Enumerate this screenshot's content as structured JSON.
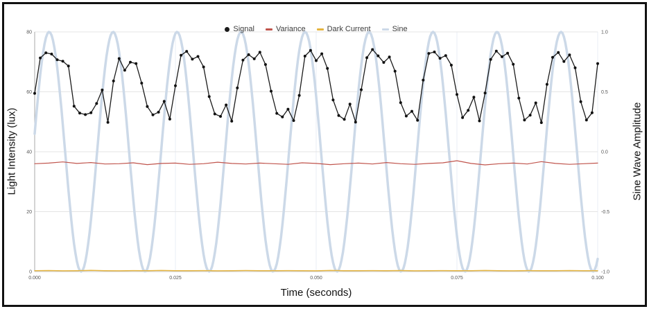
{
  "figure": {
    "legend": [
      {
        "label": "Signal",
        "marker": "dot",
        "color": "#1a1a1a"
      },
      {
        "label": "Variance",
        "marker": "dash",
        "color": "#c0544c"
      },
      {
        "label": "Dark Current",
        "marker": "dash",
        "color": "#e5b43e"
      },
      {
        "label": "Sine",
        "marker": "dash",
        "color": "#ccd9e8"
      }
    ],
    "x_axis": {
      "title": "Time (seconds)",
      "tick_labels": [
        "0.000",
        "0.025",
        "0.050",
        "0.075",
        "0.100"
      ],
      "tick_values": [
        0,
        0.025,
        0.05,
        0.075,
        0.1
      ],
      "range": [
        0,
        0.1
      ]
    },
    "y_axis_left": {
      "title": "Light Intensity (lux)",
      "tick_labels": [
        "0",
        "20",
        "40",
        "60",
        "80"
      ],
      "tick_values": [
        0,
        20,
        40,
        60,
        80
      ],
      "range": [
        0,
        80
      ]
    },
    "y_axis_right": {
      "title": "Sine Wave Amplitude",
      "tick_labels": [
        "-1.0",
        "-0.5",
        "0.0",
        "0.5",
        "1.0"
      ],
      "tick_values": [
        -1,
        -0.5,
        0,
        0.5,
        1
      ],
      "range": [
        -1,
        1
      ]
    }
  },
  "chart_data": {
    "type": "line",
    "title": "",
    "xlabel": "Time (seconds)",
    "ylabel_left": "Light Intensity (lux)",
    "ylabel_right": "Sine Wave Amplitude",
    "x_range_seconds": [
      0,
      0.1
    ],
    "y_left_range": [
      0,
      80
    ],
    "y_right_range": [
      -1,
      1
    ],
    "grid": true,
    "legend_position": "top-center",
    "series": [
      {
        "name": "Signal",
        "axis": "left",
        "color": "#1a1a1a",
        "marker": "point",
        "line_width": 1.3,
        "x_start": 0,
        "x_step": 0.001,
        "values": [
          59.5,
          71.3,
          73.0,
          72.6,
          70.7,
          70.2,
          68.6,
          55.2,
          52.9,
          52.4,
          53.0,
          56.1,
          60.6,
          49.8,
          63.6,
          71.1,
          67.2,
          69.9,
          69.4,
          62.9,
          55.1,
          52.3,
          53.2,
          56.8,
          50.9,
          62.0,
          72.2,
          73.5,
          70.9,
          71.8,
          68.3,
          58.4,
          52.6,
          51.8,
          55.6,
          50.2,
          61.3,
          70.6,
          72.4,
          71.0,
          73.2,
          69.1,
          60.2,
          52.8,
          51.6,
          54.2,
          50.4,
          58.8,
          71.9,
          73.8,
          70.4,
          72.7,
          67.8,
          57.3,
          52.1,
          50.8,
          55.9,
          49.9,
          60.7,
          71.4,
          74.1,
          72.0,
          69.8,
          71.6,
          66.9,
          56.4,
          51.9,
          53.5,
          50.5,
          63.9,
          72.8,
          73.3,
          71.2,
          72.1,
          68.9,
          59.1,
          51.4,
          53.8,
          58.2,
          50.3,
          59.6,
          70.8,
          73.6,
          71.7,
          72.9,
          69.2,
          57.9,
          50.6,
          52.2,
          56.3,
          49.7,
          62.5,
          71.5,
          73.1,
          70.1,
          72.3,
          68.0,
          56.7,
          50.6,
          53.0,
          69.4
        ]
      },
      {
        "name": "Variance",
        "axis": "left",
        "color": "#c0544c",
        "marker": "none",
        "line_width": 1.2,
        "x_start": 0,
        "x_step": 0.0025,
        "values": [
          36.0,
          36.2,
          36.6,
          36.1,
          36.4,
          35.9,
          36.0,
          36.3,
          35.7,
          36.1,
          36.2,
          35.8,
          36.0,
          36.5,
          36.1,
          35.9,
          36.2,
          36.0,
          35.8,
          36.3,
          36.1,
          35.7,
          36.0,
          36.2,
          35.9,
          36.4,
          36.0,
          35.8,
          36.1,
          36.3,
          37.0,
          36.1,
          35.6,
          36.0,
          36.2,
          35.9,
          36.7,
          36.1,
          35.8,
          36.0,
          36.2
        ]
      },
      {
        "name": "Dark Current",
        "axis": "left",
        "color": "#e5b43e",
        "marker": "none",
        "line_width": 1.5,
        "x_start": 0,
        "x_step": 0.0025,
        "values": [
          0.3,
          0.35,
          0.25,
          0.3,
          0.4,
          0.3,
          0.25,
          0.32,
          0.3,
          0.36,
          0.27,
          0.3,
          0.33,
          0.26,
          0.3,
          0.35,
          0.3,
          0.28,
          0.32,
          0.3,
          0.26,
          0.36,
          0.3,
          0.28,
          0.33,
          0.3,
          0.34,
          0.26,
          0.3,
          0.32,
          0.28,
          0.3,
          0.36,
          0.3,
          0.26,
          0.32,
          0.3,
          0.28,
          0.34,
          0.3,
          0.3
        ]
      },
      {
        "name": "Sine",
        "axis": "right",
        "color": "#ccd9e8",
        "marker": "none",
        "line_width": 3.5,
        "generator": {
          "type": "sine",
          "amplitude": 1.0,
          "frequency_hz": 88,
          "phase_rad": 0.15,
          "sample_step": 0.00025
        }
      }
    ]
  }
}
